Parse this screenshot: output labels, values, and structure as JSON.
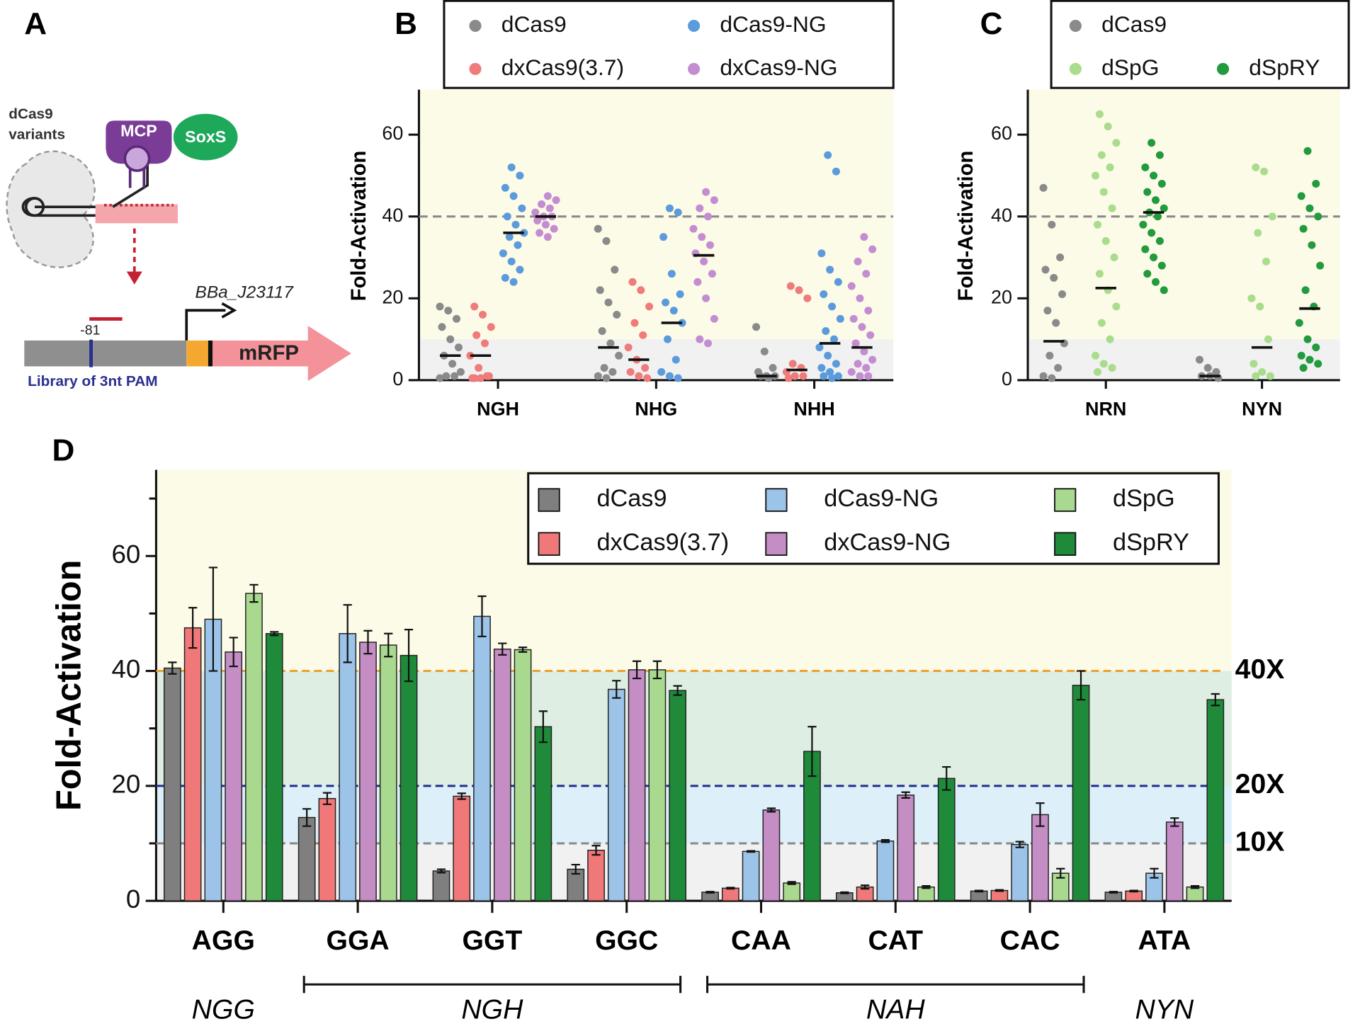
{
  "panel_a": {
    "panel": "A",
    "variant_label_1": "dCas9",
    "variant_label_2": "variants",
    "mcp": "MCP",
    "soxs": "SoxS",
    "promoter": "BBa_J23117",
    "position": "-81",
    "reporter": "mRFP",
    "library": "Library of 3nt PAM"
  },
  "chart_data": [
    {
      "type": "strip",
      "panel": "B",
      "ylabel": "Fold-Activation",
      "ylim": [
        0,
        71
      ],
      "yticks": [
        0,
        20,
        40,
        60
      ],
      "reference_line": {
        "value": 40,
        "color": "#888888"
      },
      "bands": [
        {
          "from": 0,
          "to": 10,
          "color": "#f1f1f1"
        },
        {
          "from": 10,
          "to": 71,
          "color": "#fcfbe7"
        }
      ],
      "categories": [
        "NGH",
        "NHG",
        "NHH"
      ],
      "series": [
        {
          "name": "dCas9",
          "color": "#8a8a8a",
          "values": [
            [
              18,
              17,
              15,
              13,
              10,
              8,
              6,
              4,
              2,
              1,
              1,
              0.5
            ],
            [
              37,
              34,
              27,
              22,
              19,
              16,
              12,
              9,
              6,
              3,
              2,
              1,
              0.5
            ],
            [
              13,
              7,
              3,
              2,
              1,
              1,
              1,
              0.5
            ]
          ],
          "medians": [
            6,
            8,
            1
          ]
        },
        {
          "name": "dxCas9(3.7)",
          "color": "#ef7b7b",
          "values": [
            [
              18,
              16,
              13,
              11,
              9,
              6,
              3,
              1,
              0.5,
              0.5,
              1,
              0.5
            ],
            [
              24,
              22,
              18,
              14,
              11,
              8,
              5,
              3,
              2,
              1,
              0.5
            ],
            [
              23,
              22,
              20,
              4,
              3,
              2,
              1,
              1,
              0.5
            ]
          ],
          "medians": [
            6,
            5,
            2.5
          ]
        },
        {
          "name": "dCas9-NG",
          "color": "#5b9bdb",
          "values": [
            [
              52,
              50,
              47,
              45,
              42,
              40,
              38,
              36,
              35,
              33,
              31,
              29,
              27,
              25,
              24
            ],
            [
              42,
              41,
              35,
              26,
              21,
              19,
              17,
              14,
              10,
              5,
              2,
              1,
              0.5
            ],
            [
              55,
              51,
              31,
              27,
              24,
              21,
              18,
              15,
              12,
              10,
              8,
              6,
              4,
              3,
              2,
              1,
              1,
              0.5
            ]
          ],
          "medians": [
            36,
            14,
            9
          ]
        },
        {
          "name": "dxCas9-NG",
          "color": "#c48dd2",
          "values": [
            [
              45,
              44,
              43,
              42,
              41,
              40,
              40,
              39,
              38,
              37,
              36,
              35
            ],
            [
              46,
              44,
              42,
              40,
              37,
              35,
              33,
              31,
              29,
              26,
              24,
              20,
              15,
              10,
              9
            ],
            [
              35,
              32,
              29,
              26,
              23,
              20,
              17,
              15,
              13,
              11,
              9,
              7,
              5,
              4,
              3,
              2,
              1,
              1
            ]
          ],
          "medians": [
            40,
            30.5,
            8
          ]
        }
      ]
    },
    {
      "type": "strip",
      "panel": "C",
      "ylabel": "Fold-Activation",
      "ylim": [
        0,
        71
      ],
      "yticks": [
        0,
        20,
        40,
        60
      ],
      "reference_line": {
        "value": 40,
        "color": "#888888"
      },
      "bands": [
        {
          "from": 0,
          "to": 10,
          "color": "#f1f1f1"
        },
        {
          "from": 10,
          "to": 71,
          "color": "#fcfbe7"
        }
      ],
      "categories": [
        "NRN",
        "NYN"
      ],
      "series": [
        {
          "name": "dCas9",
          "color": "#8a8a8a",
          "values": [
            [
              47,
              38,
              30,
              27,
              25,
              21,
              17,
              14,
              9,
              6,
              3,
              1,
              0.5
            ],
            [
              5,
              3,
              2,
              1,
              1,
              0.5
            ]
          ],
          "medians": [
            9.5,
            1
          ]
        },
        {
          "name": "dSpG",
          "color": "#a9dc8c",
          "values": [
            [
              65,
              62,
              58,
              55,
              52,
              50,
              46,
              42,
              38,
              34,
              30,
              26,
              22,
              18,
              14,
              10,
              6,
              4,
              3,
              2
            ],
            [
              52,
              51,
              40,
              36,
              29,
              20,
              18,
              10,
              4,
              2,
              1,
              1
            ]
          ],
          "medians": [
            22.5,
            8
          ]
        },
        {
          "name": "dSpRY",
          "color": "#229a3e",
          "values": [
            [
              58,
              55,
              52,
              50,
              48,
              46,
              44,
              42,
              41,
              40,
              38,
              36,
              34,
              32,
              30,
              28,
              26,
              24,
              22
            ],
            [
              56,
              48,
              45,
              42,
              40,
              37,
              33,
              28,
              22,
              18,
              14,
              10,
              8,
              6,
              5,
              4,
              3
            ]
          ],
          "medians": [
            41,
            17.5
          ]
        }
      ]
    },
    {
      "type": "bar",
      "panel": "D",
      "ylabel": "Fold-Activation",
      "ylim": [
        0,
        75
      ],
      "yticks": [
        0,
        20,
        40,
        60
      ],
      "yminorticks": [
        10,
        30,
        50,
        70
      ],
      "bands": [
        {
          "from": 0,
          "to": 10,
          "color": "#f1f1f1"
        },
        {
          "from": 10,
          "to": 20,
          "color": "#ddf0fa"
        },
        {
          "from": 20,
          "to": 40,
          "color": "#deeee2"
        },
        {
          "from": 40,
          "to": 75,
          "color": "#fcfbe7"
        }
      ],
      "reference_lines": [
        {
          "value": 40,
          "label": "40X",
          "color": "#f0a030"
        },
        {
          "value": 20,
          "label": "20X",
          "color": "#1f2f8f"
        },
        {
          "value": 10,
          "label": "10X",
          "color": "#888888"
        }
      ],
      "categories": [
        "AGG",
        "GGA",
        "GGT",
        "GGC",
        "CAA",
        "CAT",
        "CAC",
        "ATA"
      ],
      "group_labels": [
        "NGG",
        "NGH",
        "NAH",
        "NYN"
      ],
      "series": [
        {
          "name": "dCas9",
          "color": "#7f7f7f",
          "values": [
            40.5,
            14.5,
            5.2,
            5.5,
            1.5,
            1.4,
            1.7,
            1.5
          ],
          "errors": [
            1,
            1.5,
            0.3,
            0.8,
            0.1,
            0.1,
            0.1,
            0.1
          ]
        },
        {
          "name": "dxCas9(3.7)",
          "color": "#f07878",
          "values": [
            47.5,
            17.8,
            18.2,
            8.8,
            2.2,
            2.4,
            1.8,
            1.7
          ],
          "errors": [
            3.5,
            1,
            0.5,
            0.8,
            0.1,
            0.3,
            0.1,
            0.1
          ]
        },
        {
          "name": "dCas9-NG",
          "color": "#9cc3e8",
          "values": [
            49,
            46.5,
            49.5,
            36.8,
            8.6,
            10.4,
            9.8,
            4.8
          ],
          "errors": [
            9,
            5,
            3.5,
            1.5,
            0.1,
            0.2,
            0.5,
            0.8
          ]
        },
        {
          "name": "dxCas9-NG",
          "color": "#c48dc4",
          "values": [
            43.3,
            45,
            43.8,
            40.2,
            15.8,
            18.4,
            15,
            13.7
          ],
          "errors": [
            2.5,
            2,
            1,
            1.5,
            0.3,
            0.5,
            2,
            0.7
          ]
        },
        {
          "name": "dSpG",
          "color": "#a9d98e",
          "values": [
            53.5,
            44.5,
            43.7,
            40.2,
            3.1,
            2.4,
            4.8,
            2.4
          ],
          "errors": [
            1.5,
            2,
            0.4,
            1.5,
            0.2,
            0.2,
            0.8,
            0.2
          ]
        },
        {
          "name": "dSpRY",
          "color": "#1e8a3a",
          "values": [
            46.5,
            42.7,
            30.3,
            36.6,
            26,
            21.3,
            37.5,
            35
          ],
          "errors": [
            0.3,
            4.5,
            2.7,
            0.8,
            4.3,
            2,
            2.5,
            1
          ]
        }
      ]
    }
  ]
}
